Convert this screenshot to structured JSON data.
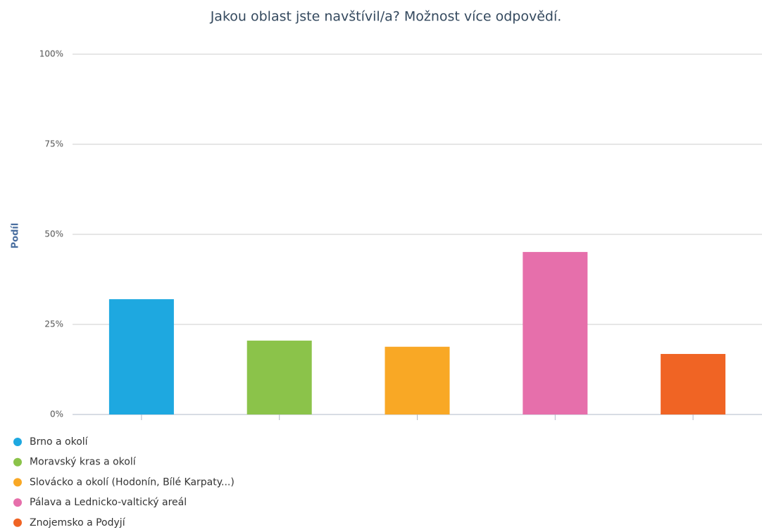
{
  "chart_data": {
    "type": "bar",
    "title": "Jakou oblast jste navštívil/a? Možnost více odpovědí.",
    "y_label": "Podíl",
    "series": [
      {
        "name": "Brno a okolí",
        "color": "#1ea8e0",
        "values": [
          32.0
        ]
      },
      {
        "name": "Moravský kras a okolí",
        "color": "#8bc34a",
        "values": [
          20.5
        ]
      },
      {
        "name": "Slovácko a okolí (Hodonín, Bílé Karpaty...)",
        "color": "#f9a825",
        "values": [
          18.8
        ]
      },
      {
        "name": "Pálava a Lednicko-valtický areál",
        "color": "#e66fab",
        "values": [
          45.1
        ]
      },
      {
        "name": "Znojemsko a Podyjí",
        "color": "#f06424",
        "values": [
          16.8
        ]
      }
    ],
    "ylim": [
      0,
      100
    ],
    "yticks": [
      {
        "value": 0,
        "label": "0%"
      },
      {
        "value": 25,
        "label": "25%"
      },
      {
        "value": 50,
        "label": "50%"
      },
      {
        "value": 75,
        "label": "75%"
      },
      {
        "value": 100,
        "label": "100%"
      }
    ],
    "grid": true,
    "legend": "bottom"
  }
}
